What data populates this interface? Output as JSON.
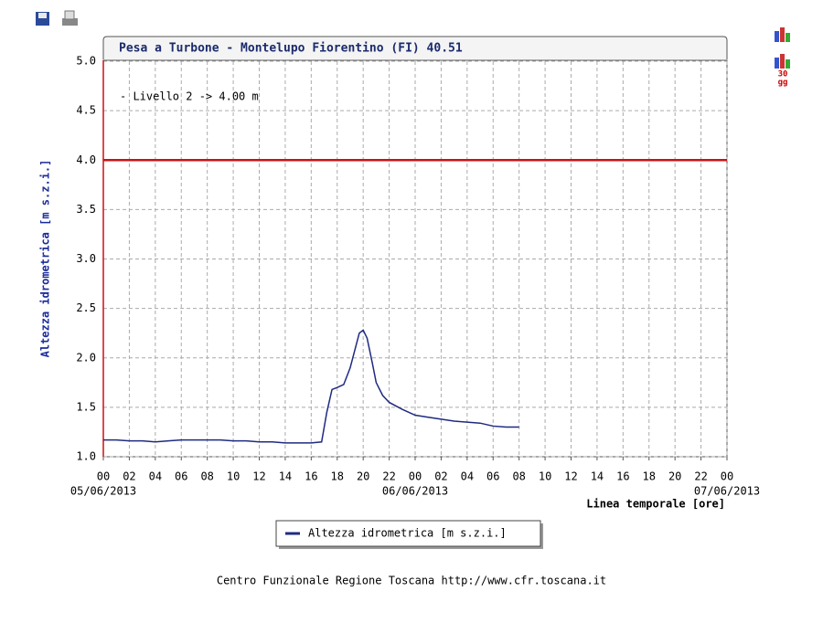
{
  "chart_data": {
    "type": "line",
    "title": "Pesa a Turbone - Montelupo Fiorentino (FI) 40.51",
    "y_label": "Altezza idrometrica [m s.z.i.]",
    "x_label": "Linea temporale [ore]",
    "xlim": [
      0,
      48
    ],
    "xticks": [
      {
        "value": 0,
        "label": "00"
      },
      {
        "value": 2,
        "label": "02"
      },
      {
        "value": 4,
        "label": "04"
      },
      {
        "value": 6,
        "label": "06"
      },
      {
        "value": 8,
        "label": "08"
      },
      {
        "value": 10,
        "label": "10"
      },
      {
        "value": 12,
        "label": "12"
      },
      {
        "value": 14,
        "label": "14"
      },
      {
        "value": 16,
        "label": "16"
      },
      {
        "value": 18,
        "label": "18"
      },
      {
        "value": 20,
        "label": "20"
      },
      {
        "value": 22,
        "label": "22"
      },
      {
        "value": 24,
        "label": "00"
      },
      {
        "value": 26,
        "label": "02"
      },
      {
        "value": 28,
        "label": "04"
      },
      {
        "value": 30,
        "label": "06"
      },
      {
        "value": 32,
        "label": "08"
      },
      {
        "value": 34,
        "label": "10"
      },
      {
        "value": 36,
        "label": "12"
      },
      {
        "value": 38,
        "label": "14"
      },
      {
        "value": 40,
        "label": "16"
      },
      {
        "value": 42,
        "label": "18"
      },
      {
        "value": 44,
        "label": "20"
      },
      {
        "value": 46,
        "label": "22"
      },
      {
        "value": 48,
        "label": "00"
      }
    ],
    "date_ticks": [
      {
        "value": 0,
        "label": "05/06/2013"
      },
      {
        "value": 24,
        "label": "06/06/2013"
      },
      {
        "value": 48,
        "label": "07/06/2013"
      }
    ],
    "ylim": [
      1,
      5
    ],
    "yticks": [
      {
        "value": 1,
        "label": "1.0"
      },
      {
        "value": 1.5,
        "label": "1.5"
      },
      {
        "value": 2,
        "label": "2.0"
      },
      {
        "value": 2.5,
        "label": "2.5"
      },
      {
        "value": 3,
        "label": "3.0"
      },
      {
        "value": 3.5,
        "label": "3.5"
      },
      {
        "value": 4,
        "label": "4.0"
      },
      {
        "value": 4.5,
        "label": "4.5"
      },
      {
        "value": 5,
        "label": "5.0"
      }
    ],
    "grid": true,
    "legend": "bottom",
    "threshold": {
      "value": 4,
      "color": "#cc1111",
      "label": "- Livello 2 -> 4.00 m"
    },
    "x": [
      0,
      1,
      2,
      3,
      4,
      5,
      6,
      7,
      8,
      9,
      10,
      11,
      12,
      13,
      14,
      15,
      16,
      16.8,
      17.2,
      17.6,
      18,
      18.5,
      19,
      19.3,
      19.7,
      20,
      20.3,
      20.7,
      21,
      21.5,
      22,
      23,
      24,
      25,
      26,
      27,
      28,
      29,
      30,
      31,
      32
    ],
    "series": [
      {
        "name": "Altezza idrometrica [m s.z.i.]",
        "color": "#1f2a80",
        "values": [
          1.17,
          1.17,
          1.16,
          1.16,
          1.15,
          1.16,
          1.17,
          1.17,
          1.17,
          1.17,
          1.16,
          1.16,
          1.15,
          1.15,
          1.14,
          1.14,
          1.14,
          1.15,
          1.45,
          1.68,
          1.7,
          1.73,
          1.9,
          2.05,
          2.25,
          2.28,
          2.2,
          1.95,
          1.75,
          1.62,
          1.55,
          1.48,
          1.42,
          1.4,
          1.38,
          1.36,
          1.35,
          1.34,
          1.31,
          1.3,
          1.3
        ]
      }
    ]
  },
  "toolbar": {
    "icon_lines": [
      "30",
      "gg"
    ]
  },
  "footer": "Centro Funzionale Regione Toscana http://www.cfr.toscana.it"
}
